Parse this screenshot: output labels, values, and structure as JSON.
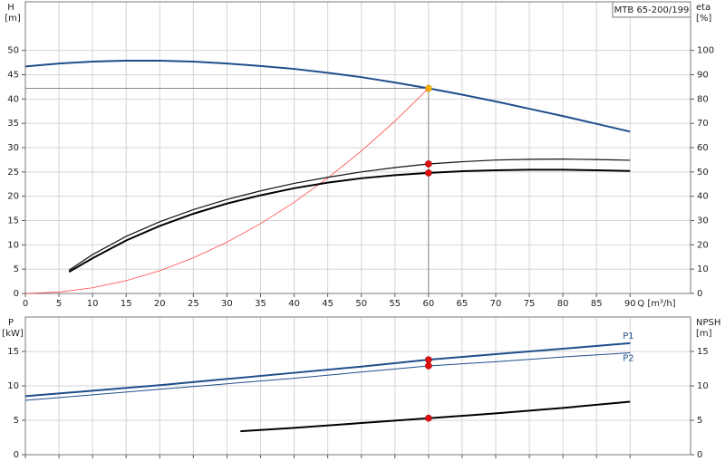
{
  "chart_data": [
    {
      "type": "line",
      "title": "MTB 65-200/199",
      "ylabel": "H",
      "yunit": "[m]",
      "y2label": "eta",
      "y2unit": "[%]",
      "xlabel": "Q [m³/h]",
      "xlim": [
        0,
        99
      ],
      "xticks": [
        0,
        5,
        10,
        15,
        20,
        25,
        30,
        35,
        40,
        45,
        50,
        55,
        60,
        65,
        70,
        75,
        80,
        85,
        90
      ],
      "ylim": [
        0,
        60
      ],
      "yticks": [
        0,
        5,
        10,
        15,
        20,
        25,
        30,
        35,
        40,
        45,
        50
      ],
      "y2lim": [
        0,
        120
      ],
      "y2ticks": [
        0,
        10,
        20,
        30,
        40,
        50,
        60,
        70,
        80,
        90,
        100
      ],
      "grid": true,
      "duty_x": 60,
      "show_xtick_labels": true,
      "series": [
        {
          "color": "#1f4e8c",
          "width": 2,
          "marker_color": "#f5b800",
          "axis": "y",
          "x": [
            0,
            5,
            10,
            15,
            20,
            25,
            30,
            35,
            40,
            45,
            50,
            55,
            60,
            65,
            70,
            75,
            80,
            85,
            90
          ],
          "values": [
            46.7,
            47.3,
            47.7,
            47.9,
            47.9,
            47.7,
            47.3,
            46.8,
            46.2,
            45.4,
            44.5,
            43.4,
            42.2,
            40.9,
            39.5,
            38.0,
            36.5,
            34.9,
            33.3
          ]
        },
        {
          "color": "#ff4a4a",
          "width": 0.8,
          "axis": "y",
          "x": [
            0,
            5,
            10,
            15,
            20,
            25,
            30,
            35,
            40,
            45,
            50,
            55,
            60
          ],
          "values": [
            0,
            0.29,
            1.17,
            2.64,
            4.69,
            7.33,
            10.55,
            14.36,
            18.76,
            23.74,
            29.31,
            35.46,
            42.2
          ]
        },
        {
          "color": "#111",
          "width": 1.2,
          "marker_color": "#e01010",
          "axis": "y2",
          "x": [
            6.5,
            10,
            15,
            20,
            25,
            30,
            35,
            40,
            45,
            50,
            55,
            60,
            65,
            70,
            75,
            80,
            85,
            90
          ],
          "values": [
            9.6,
            16,
            23.5,
            29.5,
            34.5,
            38.7,
            42.2,
            45.3,
            47.8,
            50,
            51.8,
            53.3,
            54.2,
            54.9,
            55.2,
            55.3,
            55.1,
            54.8
          ]
        },
        {
          "color": "#000",
          "width": 2,
          "marker_color": "#e01010",
          "axis": "y2",
          "x": [
            6.5,
            10,
            15,
            20,
            25,
            30,
            35,
            40,
            45,
            50,
            55,
            60,
            65,
            70,
            75,
            80,
            85,
            90
          ],
          "values": [
            8.9,
            14.5,
            21.8,
            27.8,
            32.8,
            37,
            40.4,
            43.3,
            45.6,
            47.4,
            48.7,
            49.6,
            50.3,
            50.7,
            50.9,
            50.9,
            50.7,
            50.4
          ]
        }
      ]
    },
    {
      "type": "line",
      "ylabel": "P",
      "yunit": "[kW]",
      "y2label": "NPSH",
      "y2unit": "[m]",
      "xlim": [
        0,
        99
      ],
      "xticks": [
        0,
        5,
        10,
        15,
        20,
        25,
        30,
        35,
        40,
        45,
        50,
        55,
        60,
        65,
        70,
        75,
        80,
        85,
        90
      ],
      "ylim": [
        0,
        20
      ],
      "yticks": [
        0,
        5,
        10,
        15
      ],
      "y2lim": [
        0,
        20
      ],
      "y2ticks": [
        0,
        5,
        10,
        15
      ],
      "grid": true,
      "duty_x": 60,
      "show_xtick_labels": false,
      "series": [
        {
          "name": "P1",
          "color": "#1f4e8c",
          "width": 2,
          "marker_color": "#e01010",
          "axis": "y",
          "x": [
            0,
            10,
            20,
            30,
            40,
            50,
            60,
            70,
            80,
            90
          ],
          "values": [
            8.5,
            9.3,
            10.1,
            11.0,
            11.9,
            12.8,
            13.8,
            14.6,
            15.4,
            16.2
          ]
        },
        {
          "name": "P2",
          "color": "#1f4e8c",
          "width": 1,
          "marker_color": "#e01010",
          "axis": "y",
          "x": [
            0,
            10,
            20,
            30,
            40,
            50,
            60,
            70,
            80,
            90
          ],
          "values": [
            7.9,
            8.7,
            9.5,
            10.3,
            11.1,
            12.0,
            12.9,
            13.5,
            14.2,
            14.8
          ]
        },
        {
          "color": "#000",
          "width": 2,
          "marker_color": "#e01010",
          "axis": "y2",
          "x": [
            32,
            40,
            50,
            60,
            70,
            80,
            90
          ],
          "values": [
            3.4,
            3.9,
            4.6,
            5.3,
            6.0,
            6.8,
            7.7
          ]
        }
      ]
    }
  ]
}
